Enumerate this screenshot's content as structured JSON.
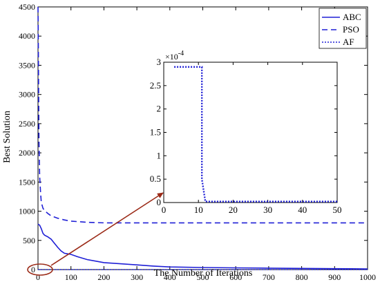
{
  "chart_data": [
    {
      "type": "line",
      "xlabel": "The Number of Iterations",
      "ylabel": "Best Solution",
      "xlim": [
        0,
        1000
      ],
      "ylim": [
        0,
        4500
      ],
      "xticks": [
        0,
        100,
        200,
        300,
        400,
        500,
        600,
        700,
        800,
        900,
        1000
      ],
      "yticks": [
        0,
        500,
        1000,
        1500,
        2000,
        2500,
        3000,
        3500,
        4000,
        4500
      ],
      "legend": {
        "placement": "top-right",
        "entries": [
          "ABC",
          "PSO",
          "AF"
        ]
      },
      "series": [
        {
          "name": "ABC",
          "style": "solid",
          "color": "#1f1fd6",
          "x": [
            0,
            5,
            10,
            15,
            20,
            30,
            40,
            50,
            60,
            70,
            80,
            90,
            100,
            120,
            150,
            180,
            200,
            250,
            300,
            350,
            400,
            500,
            600,
            700,
            800,
            900,
            1000
          ],
          "y": [
            780,
            760,
            700,
            620,
            590,
            560,
            520,
            450,
            380,
            320,
            280,
            270,
            260,
            220,
            170,
            140,
            120,
            100,
            80,
            60,
            45,
            35,
            30,
            25,
            20,
            15,
            12
          ]
        },
        {
          "name": "PSO",
          "style": "dashed",
          "color": "#1f1fd6",
          "x": [
            0,
            1,
            2,
            3,
            5,
            8,
            10,
            15,
            20,
            30,
            40,
            60,
            80,
            100,
            150,
            200,
            300,
            400,
            600,
            800,
            1000
          ],
          "y": [
            4500,
            3800,
            2900,
            2200,
            1600,
            1300,
            1150,
            1050,
            1010,
            960,
            920,
            880,
            850,
            830,
            810,
            800,
            800,
            800,
            800,
            800,
            800
          ]
        },
        {
          "name": "AF",
          "style": "dotted",
          "color": "#1f1fd6",
          "x": [
            0,
            1000
          ],
          "y": [
            0,
            0
          ]
        }
      ]
    },
    {
      "type": "line",
      "role": "inset",
      "xlim": [
        0,
        50
      ],
      "ylim": [
        0,
        3
      ],
      "yexponent": "×10^-4",
      "xticks": [
        0,
        10,
        20,
        30,
        40,
        50
      ],
      "yticks": [
        0,
        0.5,
        1,
        1.5,
        2,
        2.5,
        3
      ],
      "series": [
        {
          "name": "AF",
          "style": "dotted",
          "color": "#1f1fd6",
          "x": [
            3,
            11,
            11,
            12,
            50
          ],
          "y": [
            2.9,
            2.9,
            0.5,
            0.02,
            0.02
          ]
        }
      ]
    }
  ],
  "colors": {
    "series": "#1f1fd6",
    "arrow": "#9b2a17",
    "axis": "#000000"
  }
}
